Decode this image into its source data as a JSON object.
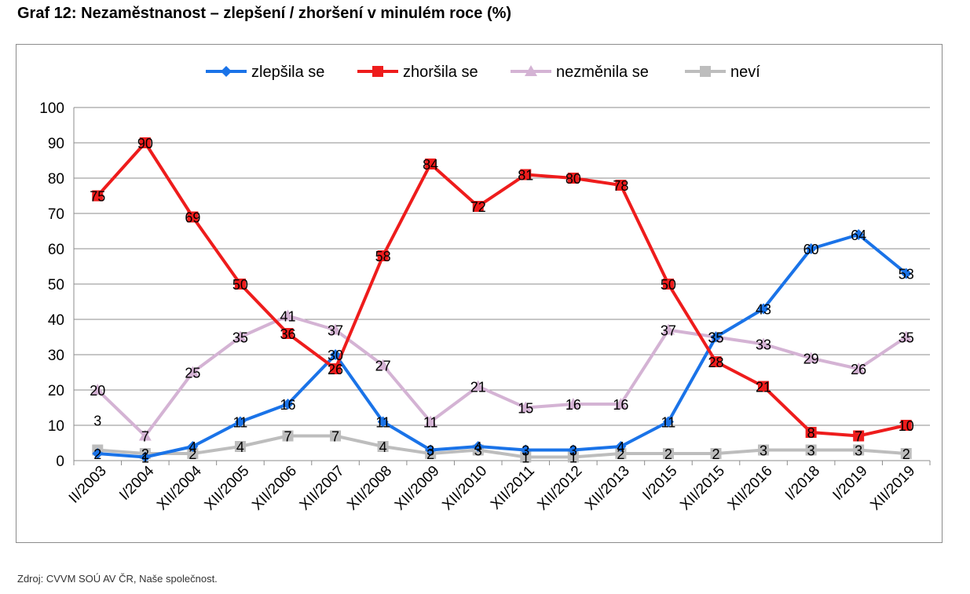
{
  "title": "Graf 12: Nezaměstnanost – zlepšení / zhoršení v minulém roce (%)",
  "source": "Zdroj: CVVM SOÚ AV ČR, Naše společnost.",
  "chart_data": {
    "type": "line",
    "categories": [
      "II/2003",
      "I/2004",
      "XII/2004",
      "XII/2005",
      "XII/2006",
      "XII/2007",
      "XII/2008",
      "XII/2009",
      "XII/2010",
      "XII/2011",
      "XII/2012",
      "XII/2013",
      "I/2015",
      "XII/2015",
      "XII/2016",
      "I/2018",
      "I/2019",
      "XII/2019"
    ],
    "ylim": [
      0,
      100
    ],
    "yticks": [
      0,
      10,
      20,
      30,
      40,
      50,
      60,
      70,
      80,
      90,
      100
    ],
    "grid": true,
    "legend": "top",
    "series": [
      {
        "name": "zlepšila se",
        "color": "#1a73e8",
        "marker": "diamond",
        "values": [
          2,
          1,
          4,
          11,
          16,
          30,
          11,
          3,
          4,
          3,
          3,
          4,
          11,
          35,
          43,
          60,
          64,
          53
        ]
      },
      {
        "name": "zhoršila se",
        "color": "#ee1c1c",
        "marker": "square",
        "values": [
          75,
          90,
          69,
          50,
          36,
          26,
          58,
          84,
          72,
          81,
          80,
          78,
          50,
          28,
          21,
          8,
          7,
          10
        ]
      },
      {
        "name": "nezměnila se",
        "color": "#d4b3d4",
        "marker": "triangle",
        "values": [
          20,
          7,
          25,
          35,
          41,
          37,
          27,
          11,
          21,
          15,
          16,
          16,
          37,
          35,
          33,
          29,
          26,
          35
        ]
      },
      {
        "name": "neví",
        "color": "#bdbdbd",
        "marker": "square",
        "values": [
          3,
          2,
          2,
          4,
          7,
          7,
          4,
          2,
          3,
          1,
          1,
          2,
          2,
          2,
          3,
          3,
          3,
          2
        ]
      }
    ]
  }
}
